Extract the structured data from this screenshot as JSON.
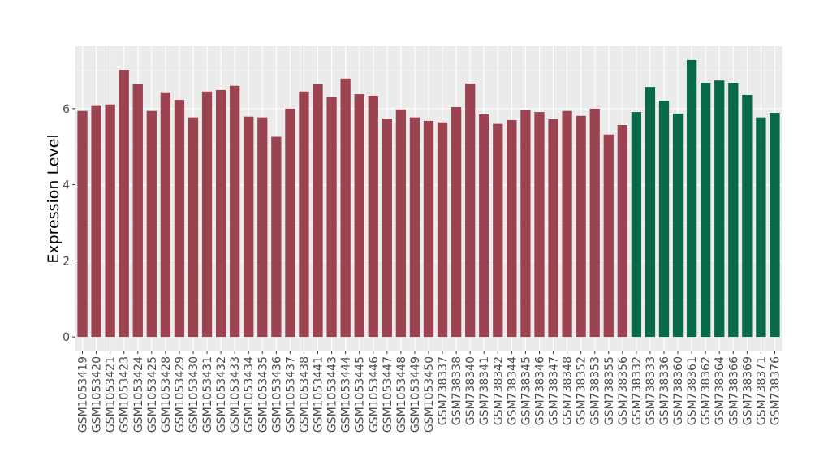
{
  "chart_data": {
    "type": "bar",
    "title": "",
    "xlabel": "",
    "ylabel": "Expression Level",
    "ylim": [
      -0.36,
      7.64
    ],
    "yticks": [
      0,
      2,
      4,
      6
    ],
    "grid": true,
    "legend": "none",
    "colors": {
      "group1": "#9b4350",
      "group2": "#07694a",
      "panel": "#ebebeb",
      "grid": "#ffffff"
    },
    "categories": [
      "GSM1053419",
      "GSM1053420",
      "GSM1053421",
      "GSM1053423",
      "GSM1053424",
      "GSM1053425",
      "GSM1053428",
      "GSM1053429",
      "GSM1053430",
      "GSM1053431",
      "GSM1053432",
      "GSM1053433",
      "GSM1053434",
      "GSM1053435",
      "GSM1053436",
      "GSM1053437",
      "GSM1053438",
      "GSM1053441",
      "GSM1053443",
      "GSM1053444",
      "GSM1053445",
      "GSM1053446",
      "GSM1053447",
      "GSM1053448",
      "GSM1053449",
      "GSM1053450",
      "GSM738337",
      "GSM738338",
      "GSM738340",
      "GSM738341",
      "GSM738342",
      "GSM738344",
      "GSM738345",
      "GSM738346",
      "GSM738347",
      "GSM738348",
      "GSM738352",
      "GSM738353",
      "GSM738355",
      "GSM738356",
      "GSM738332",
      "GSM738333",
      "GSM738336",
      "GSM738360",
      "GSM738361",
      "GSM738362",
      "GSM738364",
      "GSM738366",
      "GSM738369",
      "GSM738371",
      "GSM738376"
    ],
    "values": [
      5.94,
      6.09,
      6.11,
      7.02,
      6.64,
      5.94,
      6.43,
      6.23,
      5.77,
      6.45,
      6.49,
      6.6,
      5.79,
      5.77,
      5.26,
      6.0,
      6.45,
      6.64,
      6.3,
      6.79,
      6.38,
      6.34,
      5.74,
      5.98,
      5.77,
      5.68,
      5.64,
      6.04,
      6.66,
      5.85,
      5.6,
      5.7,
      5.96,
      5.91,
      5.72,
      5.94,
      5.81,
      6.0,
      5.32,
      5.57,
      5.91,
      6.57,
      6.21,
      5.87,
      7.28,
      6.68,
      6.74,
      6.68,
      6.36,
      5.77,
      5.89
    ],
    "groups": [
      "group1",
      "group1",
      "group1",
      "group1",
      "group1",
      "group1",
      "group1",
      "group1",
      "group1",
      "group1",
      "group1",
      "group1",
      "group1",
      "group1",
      "group1",
      "group1",
      "group1",
      "group1",
      "group1",
      "group1",
      "group1",
      "group1",
      "group1",
      "group1",
      "group1",
      "group1",
      "group1",
      "group1",
      "group1",
      "group1",
      "group1",
      "group1",
      "group1",
      "group1",
      "group1",
      "group1",
      "group1",
      "group1",
      "group1",
      "group1",
      "group2",
      "group2",
      "group2",
      "group2",
      "group2",
      "group2",
      "group2",
      "group2",
      "group2",
      "group2",
      "group2"
    ]
  }
}
